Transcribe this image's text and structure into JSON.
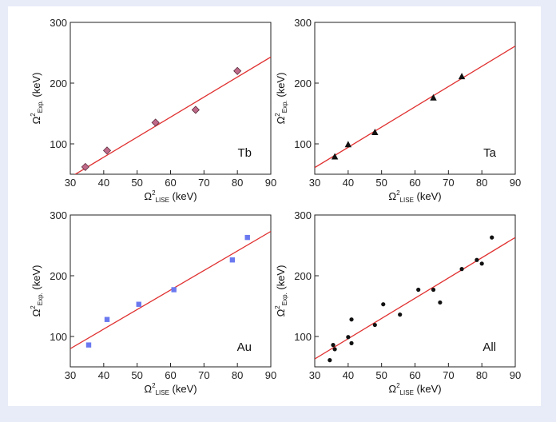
{
  "chart_data": [
    {
      "type": "scatter",
      "panel_label": "Tb",
      "xlabel": {
        "base": "Ω",
        "sup": "2",
        "sub": "LISE",
        "unit": " (keV)"
      },
      "ylabel": {
        "base": "Ω",
        "sup": "2",
        "sub": "Exp.",
        "unit": " (keV)"
      },
      "xlim": [
        30,
        90
      ],
      "ylim": [
        50,
        300
      ],
      "xticks": [
        30,
        40,
        50,
        60,
        70,
        80,
        90
      ],
      "yticks": [
        100,
        200,
        300
      ],
      "marker": "diamond",
      "marker_color": "#c06a8a",
      "points": [
        [
          34.5,
          62
        ],
        [
          41,
          89
        ],
        [
          55.5,
          135
        ],
        [
          67.5,
          156
        ],
        [
          80,
          220
        ]
      ],
      "fit_line": {
        "x": [
          30,
          90
        ],
        "y": [
          45,
          243
        ],
        "color": "#e03030"
      }
    },
    {
      "type": "scatter",
      "panel_label": "Ta",
      "xlabel": {
        "base": "Ω",
        "sup": "2",
        "sub": "LISE",
        "unit": " (keV)"
      },
      "ylabel": {
        "base": "Ω",
        "sup": "2",
        "sub": "Exp.",
        "unit": " (keV)"
      },
      "xlim": [
        30,
        90
      ],
      "ylim": [
        50,
        300
      ],
      "xticks": [
        30,
        40,
        50,
        60,
        70,
        80,
        90
      ],
      "yticks": [
        100,
        200,
        300
      ],
      "marker": "triangle",
      "marker_color": "#111111",
      "points": [
        [
          36,
          79
        ],
        [
          40,
          99
        ],
        [
          48,
          119
        ],
        [
          65.5,
          176
        ],
        [
          74,
          211
        ]
      ],
      "fit_line": {
        "x": [
          30,
          90
        ],
        "y": [
          61,
          261
        ],
        "color": "#e03030"
      }
    },
    {
      "type": "scatter",
      "panel_label": "Au",
      "xlabel": {
        "base": "Ω",
        "sup": "2",
        "sub": "LISE",
        "unit": " (keV)"
      },
      "ylabel": {
        "base": "Ω",
        "sup": "2",
        "sub": "Exp.",
        "unit": " (keV)"
      },
      "xlim": [
        30,
        90
      ],
      "ylim": [
        50,
        300
      ],
      "xticks": [
        30,
        40,
        50,
        60,
        70,
        80,
        90
      ],
      "yticks": [
        100,
        200,
        300
      ],
      "marker": "square",
      "marker_color": "#6b79f0",
      "points": [
        [
          35.5,
          86
        ],
        [
          41,
          128
        ],
        [
          50.5,
          153
        ],
        [
          61,
          177
        ],
        [
          78.5,
          226
        ],
        [
          83,
          263
        ]
      ],
      "fit_line": {
        "x": [
          30,
          90
        ],
        "y": [
          80,
          273
        ],
        "color": "#e03030"
      }
    },
    {
      "type": "scatter",
      "panel_label": "All",
      "xlabel": {
        "base": "Ω",
        "sup": "2",
        "sub": "LISE",
        "unit": " (keV)"
      },
      "ylabel": {
        "base": "Ω",
        "sup": "2",
        "sub": "Exp.",
        "unit": " (keV)"
      },
      "xlim": [
        30,
        90
      ],
      "ylim": [
        50,
        300
      ],
      "xticks": [
        30,
        40,
        50,
        60,
        70,
        80,
        90
      ],
      "yticks": [
        100,
        200,
        300
      ],
      "marker": "circle",
      "marker_color": "#111111",
      "points": [
        [
          34.5,
          61
        ],
        [
          35.5,
          86
        ],
        [
          36,
          79
        ],
        [
          40,
          99
        ],
        [
          41,
          89
        ],
        [
          41,
          128
        ],
        [
          48,
          119
        ],
        [
          50.5,
          153
        ],
        [
          55.5,
          136
        ],
        [
          61,
          177
        ],
        [
          65.5,
          177
        ],
        [
          67.5,
          156
        ],
        [
          74,
          211
        ],
        [
          78.5,
          226
        ],
        [
          80,
          220
        ],
        [
          83,
          263
        ]
      ],
      "fit_line": {
        "x": [
          30,
          90
        ],
        "y": [
          63,
          263
        ],
        "color": "#e03030"
      }
    }
  ]
}
